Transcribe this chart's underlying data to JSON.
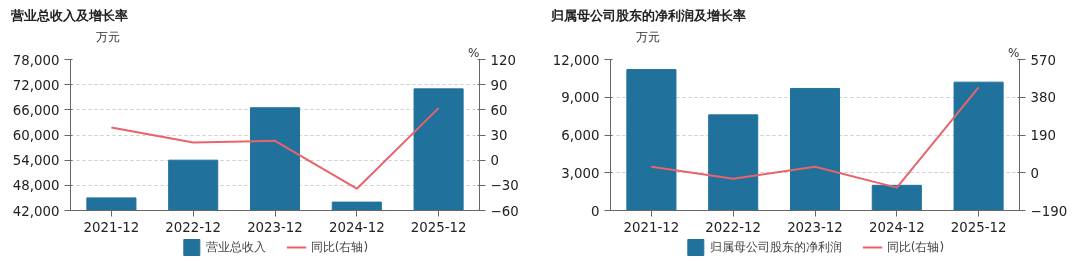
{
  "chart_data": [
    {
      "type": "bar",
      "title": "营业总收入及增长率",
      "ylabel": "万元",
      "y2label": "%",
      "categories": [
        "2021-12",
        "2022-12",
        "2023-12",
        "2024-12",
        "2025-12"
      ],
      "series": [
        {
          "name": "营业总收入",
          "color": "#20719c",
          "values": [
            45000,
            54000,
            66500,
            44000,
            71000
          ]
        },
        {
          "name": "同比(右轴)",
          "type": "line",
          "axis": "y2",
          "color": "#e8646a",
          "values": [
            39,
            21,
            23,
            -34,
            62
          ]
        }
      ],
      "ylim": [
        42000,
        78000
      ],
      "yticks": [
        {
          "value": 42000,
          "label": "42,000"
        },
        {
          "value": 48000,
          "label": "48,000"
        },
        {
          "value": 54000,
          "label": "54,000"
        },
        {
          "value": 60000,
          "label": "60,000"
        },
        {
          "value": 66000,
          "label": "66,000"
        },
        {
          "value": 72000,
          "label": "72,000"
        },
        {
          "value": 78000,
          "label": "78,000"
        }
      ],
      "y2lim": [
        -60,
        120
      ],
      "y2ticks": [
        -60,
        -30,
        0,
        30,
        60,
        90,
        120
      ],
      "grid": "y",
      "legend": "bottom"
    },
    {
      "type": "bar",
      "title": "归属母公司股东的净利润及增长率",
      "ylabel": "万元",
      "y2label": "%",
      "categories": [
        "2021-12",
        "2022-12",
        "2023-12",
        "2024-12",
        "2025-12"
      ],
      "series": [
        {
          "name": "归属母公司股东的净利润",
          "color": "#20719c",
          "values": [
            11200,
            7600,
            9700,
            2000,
            10200
          ]
        },
        {
          "name": "同比(右轴)",
          "type": "line",
          "axis": "y2",
          "color": "#e8646a",
          "values": [
            30,
            -30,
            30,
            -75,
            430
          ]
        }
      ],
      "ylim": [
        0,
        12000
      ],
      "yticks": [
        0,
        {
          "value": 3000,
          "label": "3,000"
        },
        {
          "value": 6000,
          "label": "6,000"
        },
        {
          "value": 9000,
          "label": "9,000"
        },
        {
          "value": 12000,
          "label": "12,000"
        }
      ],
      "y2lim": [
        -190,
        570
      ],
      "y2ticks": [
        -190,
        0,
        190,
        380,
        570
      ],
      "grid": "y",
      "legend": "bottom"
    }
  ]
}
